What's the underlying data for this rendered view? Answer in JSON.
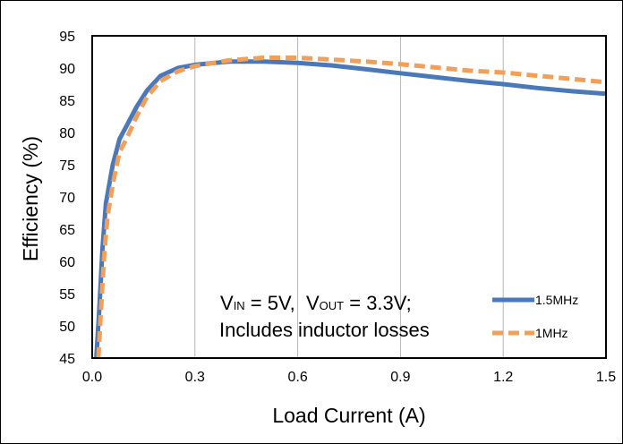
{
  "chart_data": {
    "type": "line",
    "title": "",
    "xlabel": "Load Current (A)",
    "ylabel": "Efficiency (%)",
    "xlim": [
      0,
      1.5
    ],
    "ylim": [
      45,
      95
    ],
    "xticks": [
      "0.0",
      "0.3",
      "0.6",
      "0.9",
      "1.2",
      "1.5"
    ],
    "yticks": [
      "45",
      "50",
      "55",
      "60",
      "65",
      "70",
      "75",
      "80",
      "85",
      "90",
      "95"
    ],
    "grid": "vertical",
    "legend_position": "bottom-right",
    "annotation": {
      "line1": {
        "v": "V",
        "in_sub": "IN",
        "mid": " = 5V,  V",
        "out_sub": "OUT",
        "end": " = 3.3V;"
      },
      "line2": "Includes inductor losses"
    },
    "series": [
      {
        "name": "1.5MHz",
        "color": "#4a78b8",
        "style": "solid",
        "points": [
          [
            0.012,
            45
          ],
          [
            0.02,
            52
          ],
          [
            0.03,
            62
          ],
          [
            0.04,
            69
          ],
          [
            0.06,
            75
          ],
          [
            0.08,
            79
          ],
          [
            0.1,
            81
          ],
          [
            0.13,
            84
          ],
          [
            0.16,
            86.5
          ],
          [
            0.2,
            88.8
          ],
          [
            0.25,
            90
          ],
          [
            0.3,
            90.5
          ],
          [
            0.4,
            91
          ],
          [
            0.5,
            91
          ],
          [
            0.6,
            90.8
          ],
          [
            0.7,
            90.4
          ],
          [
            0.8,
            89.8
          ],
          [
            0.9,
            89.2
          ],
          [
            1.0,
            88.6
          ],
          [
            1.1,
            88
          ],
          [
            1.2,
            87.5
          ],
          [
            1.3,
            86.9
          ],
          [
            1.4,
            86.4
          ],
          [
            1.5,
            86
          ]
        ]
      },
      {
        "name": "1MHz",
        "color": "#f0a05a",
        "style": "dashed",
        "points": [
          [
            0.018,
            45
          ],
          [
            0.025,
            52
          ],
          [
            0.035,
            61
          ],
          [
            0.045,
            67
          ],
          [
            0.06,
            72
          ],
          [
            0.08,
            77
          ],
          [
            0.1,
            79
          ],
          [
            0.13,
            82.5
          ],
          [
            0.16,
            85.5
          ],
          [
            0.2,
            88
          ],
          [
            0.25,
            89.5
          ],
          [
            0.3,
            90.3
          ],
          [
            0.4,
            91.2
          ],
          [
            0.5,
            91.6
          ],
          [
            0.6,
            91.6
          ],
          [
            0.7,
            91.3
          ],
          [
            0.8,
            91
          ],
          [
            0.9,
            90.6
          ],
          [
            1.0,
            90.1
          ],
          [
            1.1,
            89.6
          ],
          [
            1.2,
            89.3
          ],
          [
            1.3,
            88.8
          ],
          [
            1.4,
            88.3
          ],
          [
            1.5,
            87.8
          ]
        ]
      }
    ]
  }
}
